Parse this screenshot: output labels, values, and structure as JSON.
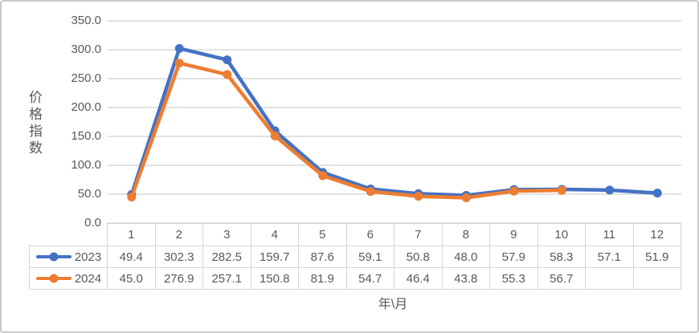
{
  "chart_data": {
    "type": "line",
    "title": "",
    "ylabel": "价格指数",
    "xlabel": "年\\月",
    "categories": [
      "1",
      "2",
      "3",
      "4",
      "5",
      "6",
      "7",
      "8",
      "9",
      "10",
      "11",
      "12"
    ],
    "series": [
      {
        "name": "2023",
        "color": "#4472C4",
        "values": [
          49.4,
          302.3,
          282.5,
          159.7,
          87.6,
          59.1,
          50.8,
          48.0,
          57.9,
          58.3,
          57.1,
          51.9
        ]
      },
      {
        "name": "2024",
        "color": "#ED7D31",
        "values": [
          45.0,
          276.9,
          257.1,
          150.8,
          81.9,
          54.7,
          46.4,
          43.8,
          55.3,
          56.7,
          null,
          null
        ]
      }
    ],
    "ylim": [
      0,
      350
    ],
    "ytick_step": 50,
    "ytick_labels": [
      "350.0",
      "300.0",
      "250.0",
      "200.0",
      "150.0",
      "100.0",
      "50.0",
      "0.0"
    ],
    "grid": "horizontal-gridlines",
    "legend_position": "table-left-keys",
    "colors": {
      "gridline": "#d9d9d9",
      "axis_text": "#595959",
      "table_border": "#d4d4d4",
      "frame_border": "#c9c9c9"
    }
  }
}
